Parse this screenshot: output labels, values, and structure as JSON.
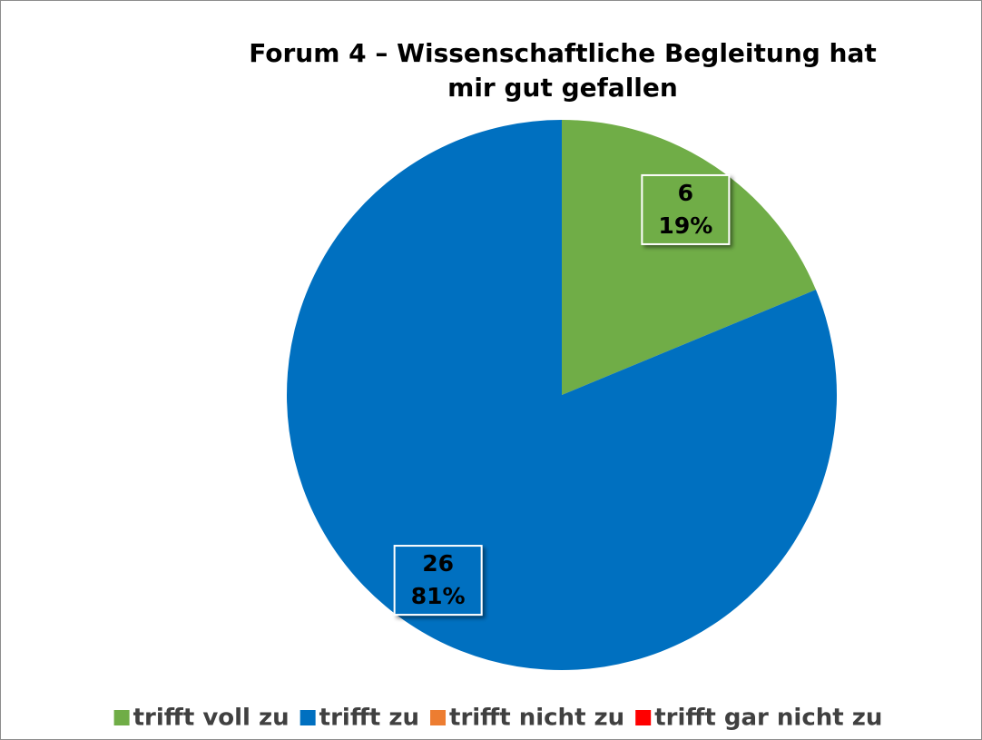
{
  "chart_data": {
    "type": "pie",
    "title": [
      "Forum 4 – Wissenschaftliche Begleitung hat",
      "mir gut gefallen"
    ],
    "categories": [
      "trifft voll zu",
      "trifft zu",
      "trifft nicht zu",
      "trifft gar nicht zu"
    ],
    "values": [
      6,
      26,
      0,
      0
    ],
    "percent_labels": [
      "19%",
      "81%",
      null,
      null
    ],
    "colors": [
      "#70ad47",
      "#0070c0",
      "#ed7d31",
      "#ff0000"
    ],
    "legend": "bottom"
  }
}
